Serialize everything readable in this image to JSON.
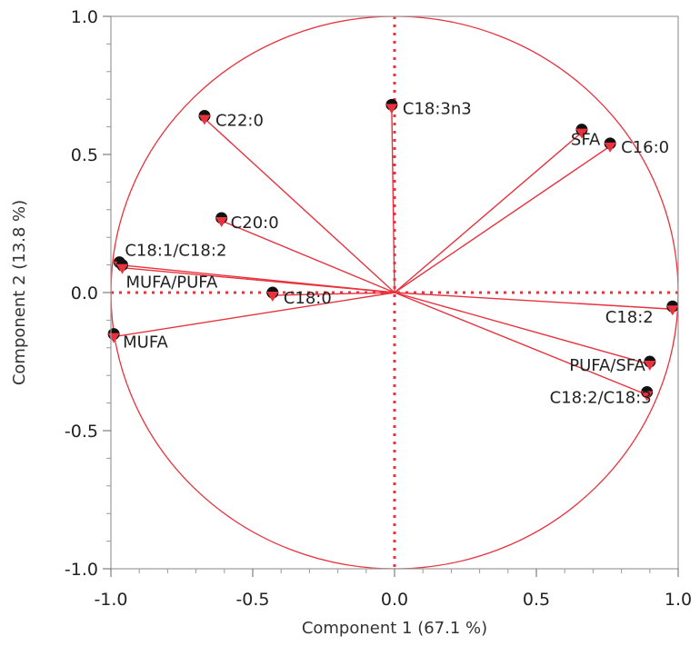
{
  "colors": {
    "vector": "#e8323e",
    "marker": "#e8323e",
    "dot": "#111111",
    "frame": "#999999",
    "text": "#222222"
  },
  "chart_data": {
    "type": "scatter",
    "title": "",
    "xlabel": "Component 1  (67.1 %)",
    "ylabel": "Component 2  (13.8 %)",
    "xlim": [
      -1.0,
      1.0
    ],
    "ylim": [
      -1.0,
      1.0
    ],
    "x_ticks": [
      "-1.0",
      "-0.5",
      "0.0",
      "0.5",
      "1.0"
    ],
    "y_ticks": [
      "1.0",
      "0.5",
      "0.0",
      "-0.5",
      "-1.0"
    ],
    "grid": false,
    "unit_circle": true,
    "reference_lines": {
      "x": 0,
      "y": 0,
      "style": "dotted"
    },
    "series": [
      {
        "points": [
          {
            "label": "C22:0",
            "x": -0.67,
            "y": 0.63
          },
          {
            "label": "C18:3n3",
            "x": -0.01,
            "y": 0.67
          },
          {
            "label": "SFA",
            "x": 0.66,
            "y": 0.58
          },
          {
            "label": "C16:0",
            "x": 0.76,
            "y": 0.53
          },
          {
            "label": "C20:0",
            "x": -0.61,
            "y": 0.26
          },
          {
            "label": "C18:1/C18:2",
            "x": -0.97,
            "y": 0.1
          },
          {
            "label": "MUFA/PUFA",
            "x": -0.96,
            "y": 0.09
          },
          {
            "label": "C18:0",
            "x": -0.43,
            "y": -0.01
          },
          {
            "label": "MUFA",
            "x": -0.99,
            "y": -0.16
          },
          {
            "label": "C18:2",
            "x": 0.98,
            "y": -0.06
          },
          {
            "label": "PUFA/SFA",
            "x": 0.9,
            "y": -0.26
          },
          {
            "label": "C18:2/C18:3",
            "x": 0.89,
            "y": -0.37
          }
        ]
      }
    ]
  }
}
